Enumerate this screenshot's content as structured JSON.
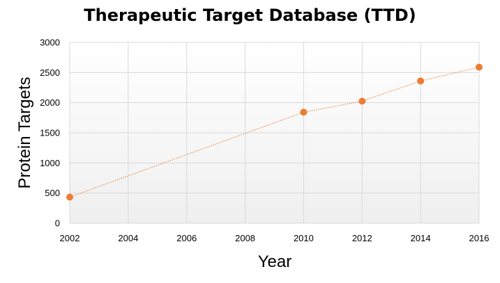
{
  "chart_data": {
    "type": "line",
    "title": "Therapeutic Target Database (TTD)",
    "xlabel": "Year",
    "ylabel": "Protein Targets",
    "xlim": [
      2002,
      2016
    ],
    "ylim": [
      0,
      3000
    ],
    "x_ticks": [
      "2002",
      "2004",
      "2006",
      "2008",
      "2010",
      "2012",
      "2014",
      "2016"
    ],
    "y_ticks": [
      "0",
      "500",
      "1000",
      "1500",
      "2000",
      "2500",
      "3000"
    ],
    "grid": true,
    "legend": "none",
    "series": [
      {
        "x": [
          2002,
          2010,
          2012,
          2014,
          2016
        ],
        "y": [
          433,
          1842,
          2025,
          2360,
          2589
        ],
        "color": "#ED7D31"
      }
    ]
  }
}
